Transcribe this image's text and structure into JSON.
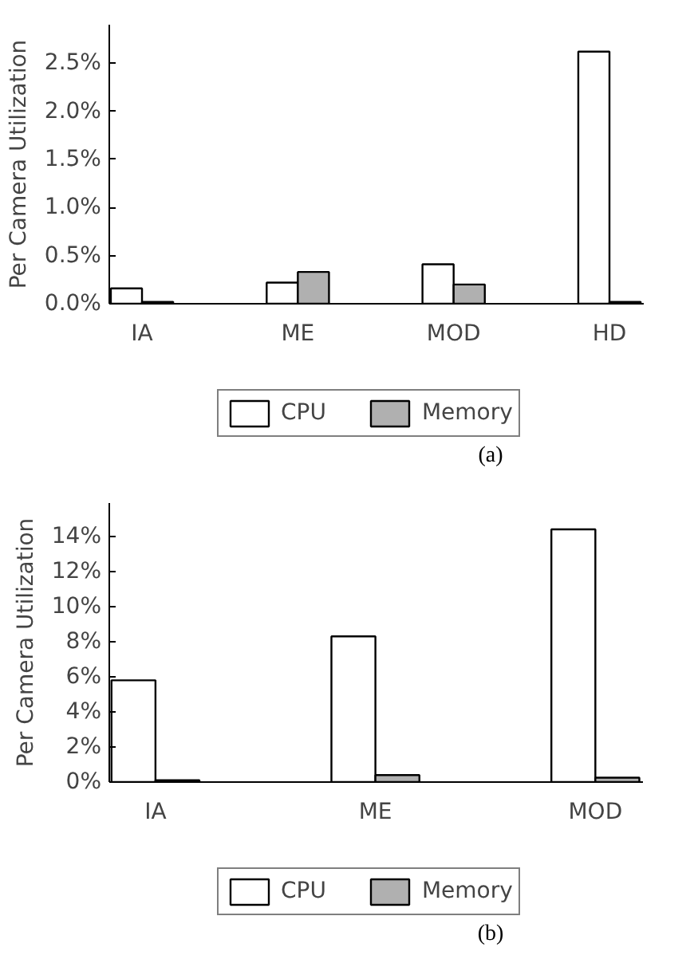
{
  "chart_data": [
    {
      "type": "bar",
      "categories": [
        "IA",
        "ME",
        "MOD",
        "HD"
      ],
      "ylabel": "Per Camera Utilization",
      "ylim": [
        0,
        2.9
      ],
      "yticks": [
        {
          "value": 0,
          "label": "0.0%"
        },
        {
          "value": 0.5,
          "label": "0.5%"
        },
        {
          "value": 1.0,
          "label": "1.0%"
        },
        {
          "value": 1.5,
          "label": "1.5%"
        },
        {
          "value": 2.0,
          "label": "2.0%"
        },
        {
          "value": 2.5,
          "label": "2.5%"
        }
      ],
      "series": [
        {
          "name": "CPU",
          "color": "#ffffff",
          "values": [
            0.16,
            0.22,
            0.41,
            2.62
          ]
        },
        {
          "name": "Memory",
          "color": "#b0b0b0",
          "values": [
            0.02,
            0.33,
            0.2,
            0.02
          ]
        }
      ],
      "legend": "bottom",
      "grid": false,
      "annotations": [
        "(a)"
      ]
    },
    {
      "type": "bar",
      "categories": [
        "IA",
        "ME",
        "MOD"
      ],
      "ylabel": "Per Camera Utilization",
      "ylim": [
        0,
        15.9
      ],
      "yticks": [
        {
          "value": 0,
          "label": "0%"
        },
        {
          "value": 2,
          "label": "2%"
        },
        {
          "value": 4,
          "label": "4%"
        },
        {
          "value": 6,
          "label": "6%"
        },
        {
          "value": 8,
          "label": "8%"
        },
        {
          "value": 10,
          "label": "10%"
        },
        {
          "value": 12,
          "label": "12%"
        },
        {
          "value": 14,
          "label": "14%"
        }
      ],
      "series": [
        {
          "name": "CPU",
          "color": "#ffffff",
          "values": [
            5.8,
            8.3,
            14.4
          ]
        },
        {
          "name": "Memory",
          "color": "#b0b0b0",
          "values": [
            0.1,
            0.4,
            0.25
          ]
        }
      ],
      "legend": "bottom",
      "grid": false,
      "annotations": [
        "(b)"
      ]
    }
  ]
}
